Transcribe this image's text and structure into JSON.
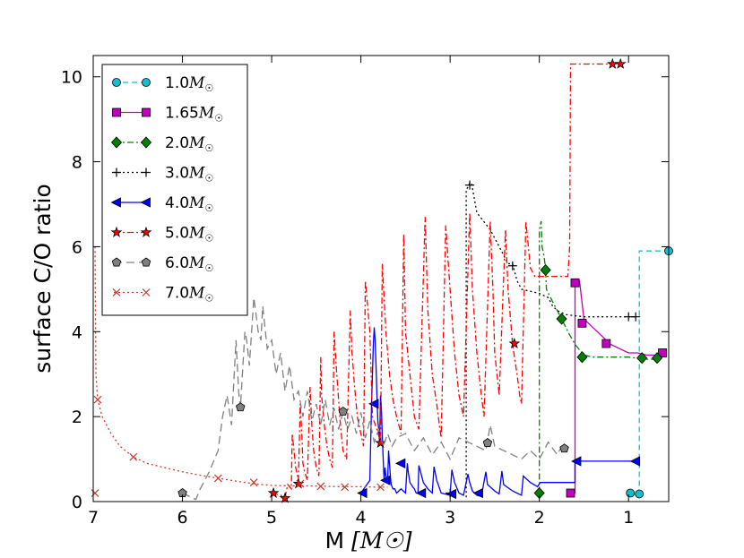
{
  "chart_data": {
    "type": "line",
    "xlabel": "M",
    "xlabel_unit": "[M☉]",
    "ylabel": "surface C/O ratio",
    "xlim": [
      7,
      0.55
    ],
    "ylim": [
      0,
      10.5
    ],
    "xticks": [
      7,
      6,
      5,
      4,
      3,
      2,
      1
    ],
    "yticks": [
      0,
      2,
      4,
      6,
      8,
      10
    ],
    "legend_position": "top-left",
    "series": [
      {
        "name": "1.0",
        "label_unit": "M☉",
        "color": "#17becf",
        "dash": "6,4",
        "marker": "circle",
        "x": [
          1.0,
          0.88,
          0.88,
          0.55
        ],
        "y": [
          0.2,
          0.2,
          5.9,
          5.9
        ],
        "markers_x": [
          0.98,
          0.88,
          0.55
        ],
        "markers_y": [
          0.2,
          0.18,
          5.9
        ]
      },
      {
        "name": "1.65",
        "label_unit": "M☉",
        "color": "#bf00bf",
        "dash": "",
        "marker": "square",
        "x": [
          1.65,
          1.6,
          1.6,
          1.55,
          1.5,
          1.45,
          1.35,
          1.25,
          1.2,
          1.1,
          1.0,
          0.9,
          0.8,
          0.7,
          0.62
        ],
        "y": [
          0.2,
          0.2,
          5.2,
          5.2,
          4.3,
          4.2,
          4.0,
          3.8,
          3.7,
          3.6,
          3.5,
          3.5,
          3.45,
          3.45,
          3.5
        ],
        "markers_x": [
          1.65,
          1.6,
          1.52,
          1.25,
          0.62
        ],
        "markers_y": [
          0.2,
          5.15,
          4.2,
          3.72,
          3.5
        ]
      },
      {
        "name": "2.0",
        "label_unit": "M☉",
        "color": "#008000",
        "dash": "7,3,2,3",
        "marker": "diamond",
        "x": [
          2.0,
          2.0,
          1.98,
          1.97,
          1.95,
          1.93,
          1.92,
          1.85,
          1.75,
          1.68,
          1.6,
          1.5,
          1.4,
          1.2,
          1.0,
          0.8,
          0.65
        ],
        "y": [
          0.2,
          6.4,
          6.6,
          6.0,
          5.8,
          5.5,
          5.0,
          4.7,
          4.3,
          4.0,
          3.7,
          3.45,
          3.4,
          3.4,
          3.4,
          3.35,
          3.35
        ],
        "markers_x": [
          2.0,
          1.93,
          1.75,
          1.52,
          0.85,
          0.68
        ],
        "markers_y": [
          0.2,
          5.45,
          4.3,
          3.4,
          3.38,
          3.38
        ]
      },
      {
        "name": "3.0",
        "label_unit": "M☉",
        "color": "#000000",
        "dash": "2,3",
        "marker": "plus",
        "x": [
          2.82,
          2.82,
          2.8,
          2.78,
          2.76,
          2.7,
          2.55,
          2.45,
          2.35,
          2.3,
          2.25,
          2.2,
          2.0,
          1.9,
          1.85,
          1.8,
          1.7,
          1.5,
          1.3,
          1.1,
          0.9
        ],
        "y": [
          0.1,
          7.35,
          7.4,
          7.5,
          7.5,
          6.8,
          6.4,
          6.0,
          5.6,
          5.6,
          5.2,
          5.0,
          4.9,
          4.8,
          4.6,
          4.5,
          4.4,
          4.35,
          4.35,
          4.35,
          4.35
        ],
        "markers_x": [
          3.0,
          2.78,
          2.3,
          1.0,
          0.92
        ],
        "markers_y": [
          0.2,
          7.45,
          5.55,
          4.35,
          4.35
        ]
      },
      {
        "name": "4.0",
        "label_unit": "M☉",
        "color": "#0000ff",
        "dash": "",
        "marker": "triangle-left",
        "x": [
          4.0,
          3.9,
          3.88,
          3.86,
          3.85,
          3.84,
          3.83,
          3.82,
          3.81,
          3.8,
          3.79,
          3.78,
          3.77,
          3.76,
          3.75,
          3.74,
          3.73,
          3.72,
          3.7,
          3.69,
          3.68,
          3.67,
          3.66,
          3.64,
          3.62,
          3.6,
          3.55,
          3.5,
          3.48,
          3.47,
          3.45,
          3.42,
          3.4,
          3.38,
          3.36,
          3.35,
          3.3,
          3.25,
          3.2,
          3.18,
          3.15,
          3.1,
          3.0,
          2.98,
          2.95,
          2.9,
          2.85,
          2.8,
          2.78,
          2.75,
          2.7,
          2.65,
          2.6,
          2.58,
          2.5,
          2.45,
          2.42,
          2.4,
          2.3,
          2.25,
          2.2,
          2.18,
          2.1,
          2.02,
          1.99,
          1.95,
          1.9,
          1.85,
          1.8,
          1.75,
          1.7,
          1.65,
          1.62,
          1.6,
          1.6,
          1.55,
          1.5,
          1.4,
          1.2,
          1.0,
          0.95,
          0.9
        ],
        "y": [
          0.2,
          0.5,
          2.3,
          3.7,
          4.1,
          3.8,
          3.2,
          2.5,
          1.9,
          1.7,
          1.35,
          2.5,
          2.2,
          1.5,
          1.0,
          0.5,
          0.8,
          0.6,
          0.5,
          1.2,
          0.9,
          0.6,
          0.4,
          0.3,
          0.3,
          0.2,
          0.3,
          0.2,
          0.9,
          0.7,
          0.45,
          0.35,
          0.3,
          0.2,
          0.2,
          0.85,
          0.45,
          0.3,
          0.2,
          0.82,
          0.5,
          0.2,
          0.15,
          0.75,
          0.45,
          0.2,
          0.15,
          0.65,
          0.45,
          0.25,
          0.15,
          0.12,
          0.7,
          0.4,
          0.25,
          0.18,
          0.72,
          0.4,
          0.25,
          0.2,
          0.15,
          0.6,
          0.45,
          0.35,
          0.45,
          0.45,
          0.45,
          0.45,
          0.45,
          0.45,
          0.45,
          0.45,
          0.45,
          0.45,
          0.95,
          0.95,
          0.95,
          0.95,
          0.95,
          0.95,
          0.95,
          0.95
        ],
        "markers_x": [
          3.98,
          3.85,
          3.72,
          3.55,
          3.32,
          2.98,
          2.68,
          1.58,
          0.92
        ],
        "markers_y": [
          0.2,
          2.3,
          0.5,
          0.9,
          0.2,
          0.18,
          0.2,
          0.95,
          0.95
        ]
      },
      {
        "name": "5.0",
        "label_unit": "M☉",
        "color": "#ff0000",
        "dash": "7,3,2,3",
        "marker": "star",
        "x": [
          5.0,
          4.9,
          4.85,
          4.82,
          4.8,
          4.78,
          4.77,
          4.75,
          4.73,
          4.7,
          4.68,
          4.66,
          4.65,
          4.63,
          4.6,
          4.57,
          4.55,
          4.53,
          4.5,
          4.47,
          4.45,
          4.44,
          4.41,
          4.38,
          4.35,
          4.32,
          4.3,
          4.27,
          4.24,
          4.22,
          4.2,
          4.16,
          4.12,
          4.1,
          4.07,
          4.04,
          4.0,
          3.97,
          3.95,
          3.9,
          3.87,
          3.82,
          3.78,
          3.76,
          3.72,
          3.68,
          3.64,
          3.6,
          3.55,
          3.52,
          3.5,
          3.45,
          3.4,
          3.35,
          3.28,
          3.25,
          3.2,
          3.15,
          3.12,
          3.1,
          3.05,
          3.0,
          2.95,
          2.9,
          2.85,
          2.78,
          2.75,
          2.7,
          2.65,
          2.62,
          2.55,
          2.52,
          2.5,
          2.45,
          2.38,
          2.35,
          2.3,
          2.25,
          2.22,
          2.2,
          2.15,
          2.1,
          2.05,
          2.03,
          2.0,
          1.95,
          1.9,
          1.8,
          1.75,
          1.7,
          1.68,
          1.66,
          1.65,
          1.62,
          1.5,
          1.4,
          1.2,
          1.15,
          1.1,
          1.08
        ],
        "y": [
          0.2,
          0.15,
          0.1,
          0.4,
          0.35,
          0.3,
          1.6,
          1.2,
          0.8,
          0.5,
          2.3,
          1.5,
          0.9,
          0.7,
          0.5,
          2.7,
          1.8,
          1.2,
          0.8,
          0.6,
          3.4,
          2.5,
          1.8,
          1.3,
          1.0,
          0.8,
          4.0,
          3.0,
          2.1,
          1.6,
          1.2,
          1.0,
          4.5,
          3.5,
          2.7,
          2.0,
          1.6,
          1.3,
          5.2,
          4.0,
          2.0,
          1.7,
          1.4,
          5.6,
          4.0,
          3.0,
          2.4,
          2.0,
          1.6,
          6.3,
          4.0,
          3.0,
          2.0,
          1.7,
          6.7,
          4.5,
          3.0,
          2.3,
          1.8,
          1.5,
          6.5,
          5.0,
          3.5,
          2.5,
          2.0,
          6.8,
          5.0,
          3.5,
          2.5,
          2.0,
          6.6,
          5.0,
          3.5,
          2.5,
          6.4,
          5.0,
          3.7,
          3.0,
          2.5,
          2.3,
          6.6,
          5.5,
          5.3,
          5.3,
          5.3,
          5.3,
          5.3,
          5.3,
          5.3,
          5.3,
          5.3,
          6.0,
          10.3,
          10.3,
          10.3,
          10.3,
          10.3,
          10.3,
          10.3,
          10.3
        ],
        "markers_x": [
          4.98,
          4.85,
          4.7,
          3.78,
          2.28,
          1.18,
          1.09
        ],
        "markers_y": [
          0.2,
          0.08,
          0.42,
          1.38,
          3.72,
          10.3,
          10.3
        ]
      },
      {
        "name": "6.0",
        "label_unit": "M☉",
        "color": "#808080",
        "dash": "9,5",
        "marker": "pentagon",
        "x": [
          6.0,
          5.9,
          5.85,
          5.8,
          5.7,
          5.6,
          5.55,
          5.5,
          5.45,
          5.4,
          5.37,
          5.35,
          5.3,
          5.28,
          5.25,
          5.2,
          5.15,
          5.12,
          5.1,
          5.05,
          5.0,
          4.95,
          4.9,
          4.85,
          4.8,
          4.75,
          4.7,
          4.65,
          4.6,
          4.55,
          4.5,
          4.45,
          4.4,
          4.35,
          4.3,
          4.25,
          4.2,
          4.15,
          4.1,
          4.05,
          4.0,
          3.95,
          3.9,
          3.85,
          3.8,
          3.75,
          3.7,
          3.65,
          3.6,
          3.5,
          3.4,
          3.3,
          3.2,
          3.1,
          3.0,
          2.9,
          2.8,
          2.7,
          2.6,
          2.55,
          2.5,
          2.4,
          2.3,
          2.2,
          2.1,
          2.0,
          1.9,
          1.8,
          1.75,
          1.72,
          1.7
        ],
        "y": [
          0.2,
          0.1,
          0.05,
          0.3,
          0.7,
          1.2,
          2.0,
          2.5,
          1.8,
          3.8,
          2.6,
          2.2,
          4.0,
          3.8,
          3.2,
          4.8,
          4.0,
          3.8,
          4.6,
          3.6,
          3.8,
          3.0,
          3.5,
          2.6,
          3.2,
          2.4,
          2.6,
          2.0,
          2.6,
          1.9,
          2.3,
          1.8,
          2.4,
          1.8,
          2.2,
          1.7,
          2.1,
          1.7,
          2.0,
          1.6,
          2.1,
          1.5,
          1.9,
          1.4,
          1.7,
          1.3,
          1.6,
          1.3,
          1.5,
          1.6,
          1.2,
          1.5,
          1.1,
          1.4,
          1.0,
          1.5,
          1.4,
          1.3,
          1.2,
          1.8,
          1.3,
          1.2,
          1.1,
          1.0,
          1.2,
          1.0,
          1.4,
          1.1,
          1.3,
          1.25,
          1.25
        ],
        "markers_x": [
          6.0,
          5.35,
          4.2,
          2.58,
          1.72
        ],
        "markers_y": [
          0.2,
          2.22,
          2.12,
          1.38,
          1.25
        ]
      },
      {
        "name": "7.0",
        "label_unit": "M☉",
        "color": "#c8382a",
        "dash": "2,3",
        "marker": "x",
        "x": [
          6.98,
          6.97,
          6.95,
          6.9,
          6.8,
          6.7,
          6.55,
          6.4,
          6.2,
          6.0,
          5.8,
          5.6,
          5.4,
          5.2,
          5.0,
          4.8,
          4.6,
          4.4,
          4.2,
          4.0,
          3.8,
          3.7
        ],
        "y": [
          6.0,
          3.0,
          2.4,
          2.0,
          1.6,
          1.3,
          1.05,
          0.9,
          0.8,
          0.7,
          0.62,
          0.55,
          0.48,
          0.42,
          0.38,
          0.37,
          0.37,
          0.36,
          0.35,
          0.35,
          0.34,
          0.34
        ],
        "markers_x": [
          6.98,
          6.95,
          6.55,
          5.6,
          5.2,
          4.68,
          4.45,
          4.18,
          3.78
        ],
        "markers_y": [
          0.2,
          2.4,
          1.05,
          0.55,
          0.45,
          0.42,
          0.36,
          0.34,
          0.34
        ]
      }
    ]
  }
}
